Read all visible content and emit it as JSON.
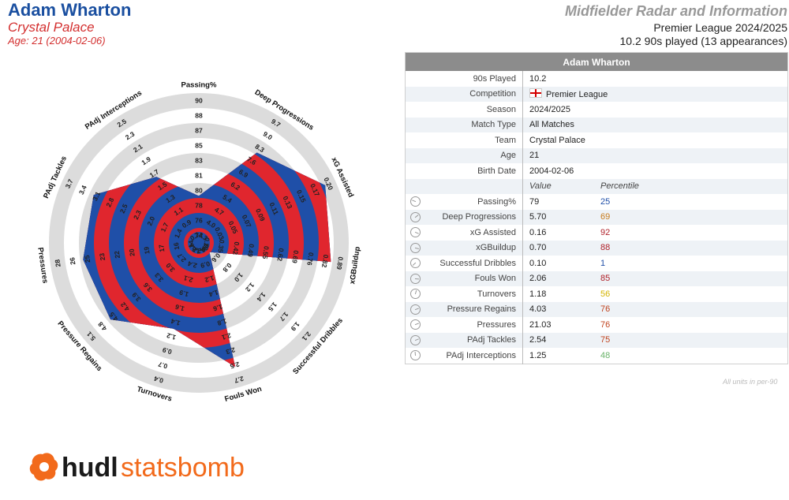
{
  "header": {
    "player": "Adam Wharton",
    "team": "Crystal Palace",
    "age": "Age: 21 (2004-02-06)",
    "title": "Midfielder Radar and Information",
    "league": "Premier League 2024/2025",
    "played": "10.2 90s played (13 appearances)"
  },
  "chart_data": {
    "type": "radar",
    "metrics": [
      {
        "name": "Passing%",
        "value": 79,
        "percentile": 25,
        "ticks": [
          "74",
          "76",
          "78",
          "80",
          "81",
          "83",
          "85",
          "87",
          "88",
          "90"
        ]
      },
      {
        "name": "Deep Progressions",
        "value": 5.7,
        "percentile": 69,
        "ticks": [
          "3.3",
          "4.0",
          "4.7",
          "5.4",
          "6.2",
          "6.9",
          "7.6",
          "8.3",
          "9.0",
          "9.7"
        ]
      },
      {
        "name": "xG Assisted",
        "value": 0.16,
        "percentile": 92,
        "ticks": [
          "0.03",
          "0.05",
          "0.07",
          "0.09",
          "0.11",
          "0.13",
          "0.15",
          "0.17",
          "0.20"
        ]
      },
      {
        "name": "xGBuildup",
        "value": 0.7,
        "percentile": 88,
        "ticks": [
          "0.28",
          "0.35",
          "0.42",
          "0.49",
          "0.55",
          "0.62",
          "0.69",
          "0.76",
          "0.82",
          "0.89"
        ]
      },
      {
        "name": "Successful Dribbles",
        "value": 0.1,
        "percentile": 1,
        "ticks": [
          "0.4",
          "0.6",
          "0.8",
          "1.0",
          "1.2",
          "1.4",
          "1.5",
          "1.7",
          "1.9",
          "2.1"
        ]
      },
      {
        "name": "Fouls Won",
        "value": 2.06,
        "percentile": 85,
        "ticks": [
          "0.7",
          "0.9",
          "1.2",
          "1.4",
          "1.6",
          "1.8",
          "2.1",
          "2.3",
          "2.5",
          "2.7"
        ]
      },
      {
        "name": "Turnovers",
        "value": 1.18,
        "percentile": 56,
        "ticks": [
          "2.6",
          "2.4",
          "2.1",
          "1.9",
          "1.6",
          "1.4",
          "1.2",
          "0.9",
          "0.7",
          "0.4"
        ]
      },
      {
        "name": "Pressure Regains",
        "value": 4.03,
        "percentile": 76,
        "ticks": [
          "2.4",
          "2.7",
          "3.0",
          "3.3",
          "3.6",
          "3.9",
          "4.2",
          "4.5",
          "4.8",
          "5.1"
        ]
      },
      {
        "name": "Pressures",
        "value": 21.03,
        "percentile": 76,
        "ticks": [
          "14",
          "16",
          "17",
          "19",
          "20",
          "22",
          "23",
          "25",
          "26",
          "28"
        ]
      },
      {
        "name": "PAdj Tackles",
        "value": 2.54,
        "percentile": 75,
        "ticks": [
          "1.4",
          "1.7",
          "2.0",
          "2.3",
          "2.5",
          "2.8",
          "3.1",
          "3.4",
          "3.7"
        ]
      },
      {
        "name": "PAdj Interceptions",
        "value": 1.25,
        "percentile": 48,
        "ticks": [
          "0.7",
          "0.9",
          "1.1",
          "1.3",
          "1.5",
          "1.7",
          "1.9",
          "2.1",
          "2.3",
          "2.5"
        ]
      }
    ],
    "radial_range": [
      0,
      1
    ],
    "colors": {
      "band_a": "#1f4fa8",
      "band_b": "#e0262e",
      "grid": "#dcdcdc"
    }
  },
  "table": {
    "header": "Adam Wharton",
    "info": [
      {
        "label": "90s Played",
        "value": "10.2"
      },
      {
        "label": "Competition",
        "value": "Premier League",
        "flag": true
      },
      {
        "label": "Season",
        "value": "2024/2025"
      },
      {
        "label": "Match Type",
        "value": "All Matches"
      },
      {
        "label": "Team",
        "value": "Crystal Palace"
      },
      {
        "label": "Age",
        "value": "21"
      },
      {
        "label": "Birth Date",
        "value": "2004-02-06"
      }
    ],
    "col_value": "Value",
    "col_percentile": "Percentile",
    "stats": [
      {
        "label": "Passing%",
        "value": "79",
        "pct": "25",
        "color": "#1f4fa8"
      },
      {
        "label": "Deep Progressions",
        "value": "5.70",
        "pct": "69",
        "color": "#c77a1a"
      },
      {
        "label": "xG Assisted",
        "value": "0.16",
        "pct": "92",
        "color": "#b0222a"
      },
      {
        "label": "xGBuildup",
        "value": "0.70",
        "pct": "88",
        "color": "#b0222a"
      },
      {
        "label": "Successful Dribbles",
        "value": "0.10",
        "pct": "1",
        "color": "#1f4fa8"
      },
      {
        "label": "Fouls Won",
        "value": "2.06",
        "pct": "85",
        "color": "#b0222a"
      },
      {
        "label": "Turnovers",
        "value": "1.18",
        "pct": "56",
        "color": "#d4b400"
      },
      {
        "label": "Pressure Regains",
        "value": "4.03",
        "pct": "76",
        "color": "#c0441f"
      },
      {
        "label": "Pressures",
        "value": "21.03",
        "pct": "76",
        "color": "#c0441f"
      },
      {
        "label": "PAdj Tackles",
        "value": "2.54",
        "pct": "75",
        "color": "#c0441f"
      },
      {
        "label": "PAdj Interceptions",
        "value": "1.25",
        "pct": "48",
        "color": "#6ab36a"
      }
    ],
    "footnote": "All units in per-90"
  },
  "logo": {
    "left": "hudl",
    "right": "statsbomb",
    "color": "#f26a1b",
    "text_color": "#1a1a1a"
  }
}
